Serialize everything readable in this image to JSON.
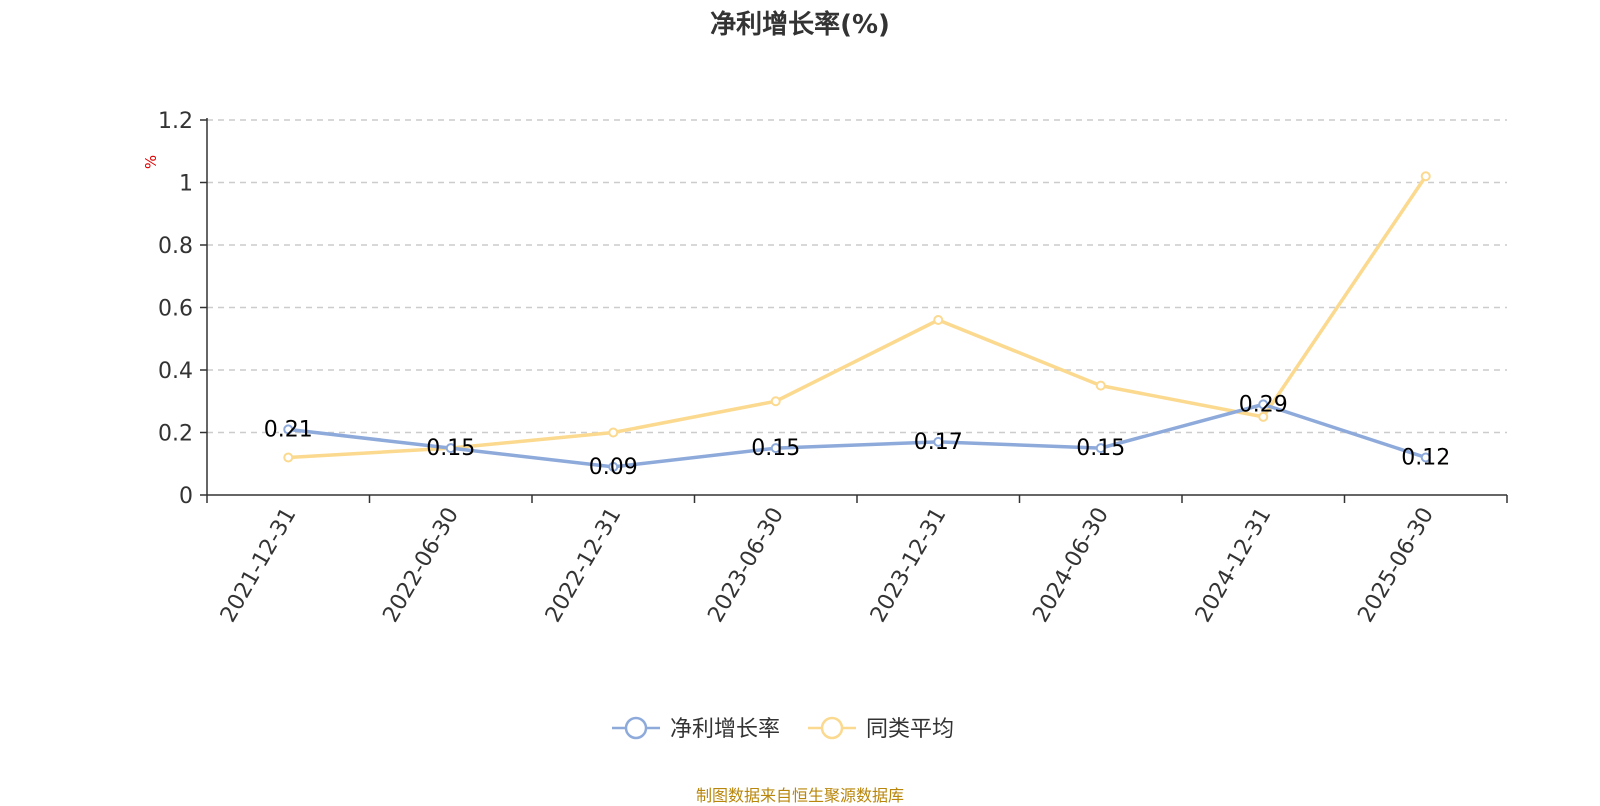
{
  "chart_data": {
    "type": "line",
    "title": "净利增长率(%)",
    "ylabel": "%",
    "xlabel": "",
    "categories": [
      "2021-12-31",
      "2022-06-30",
      "2022-12-31",
      "2023-06-30",
      "2023-12-31",
      "2024-06-30",
      "2024-12-31",
      "2025-06-30"
    ],
    "ylim": [
      0,
      1.2
    ],
    "yticks": [
      "0",
      "0.2",
      "0.4",
      "0.6",
      "0.8",
      "1",
      "1.2"
    ],
    "grid": true,
    "legend_position": "bottom",
    "series": [
      {
        "name": "净利增长率",
        "color": "#8eaadb",
        "values": [
          0.21,
          0.15,
          0.09,
          0.15,
          0.17,
          0.15,
          0.29,
          0.12
        ],
        "labels": [
          "0.21",
          "0.15",
          "0.09",
          "0.15",
          "0.17",
          "0.15",
          "0.29",
          "0.12"
        ]
      },
      {
        "name": "同类平均",
        "color": "#fbd98f",
        "values": [
          0.12,
          0.15,
          0.2,
          0.3,
          0.56,
          0.35,
          0.25,
          1.02
        ]
      }
    ]
  },
  "source_note": "制图数据来自恒生聚源数据库"
}
